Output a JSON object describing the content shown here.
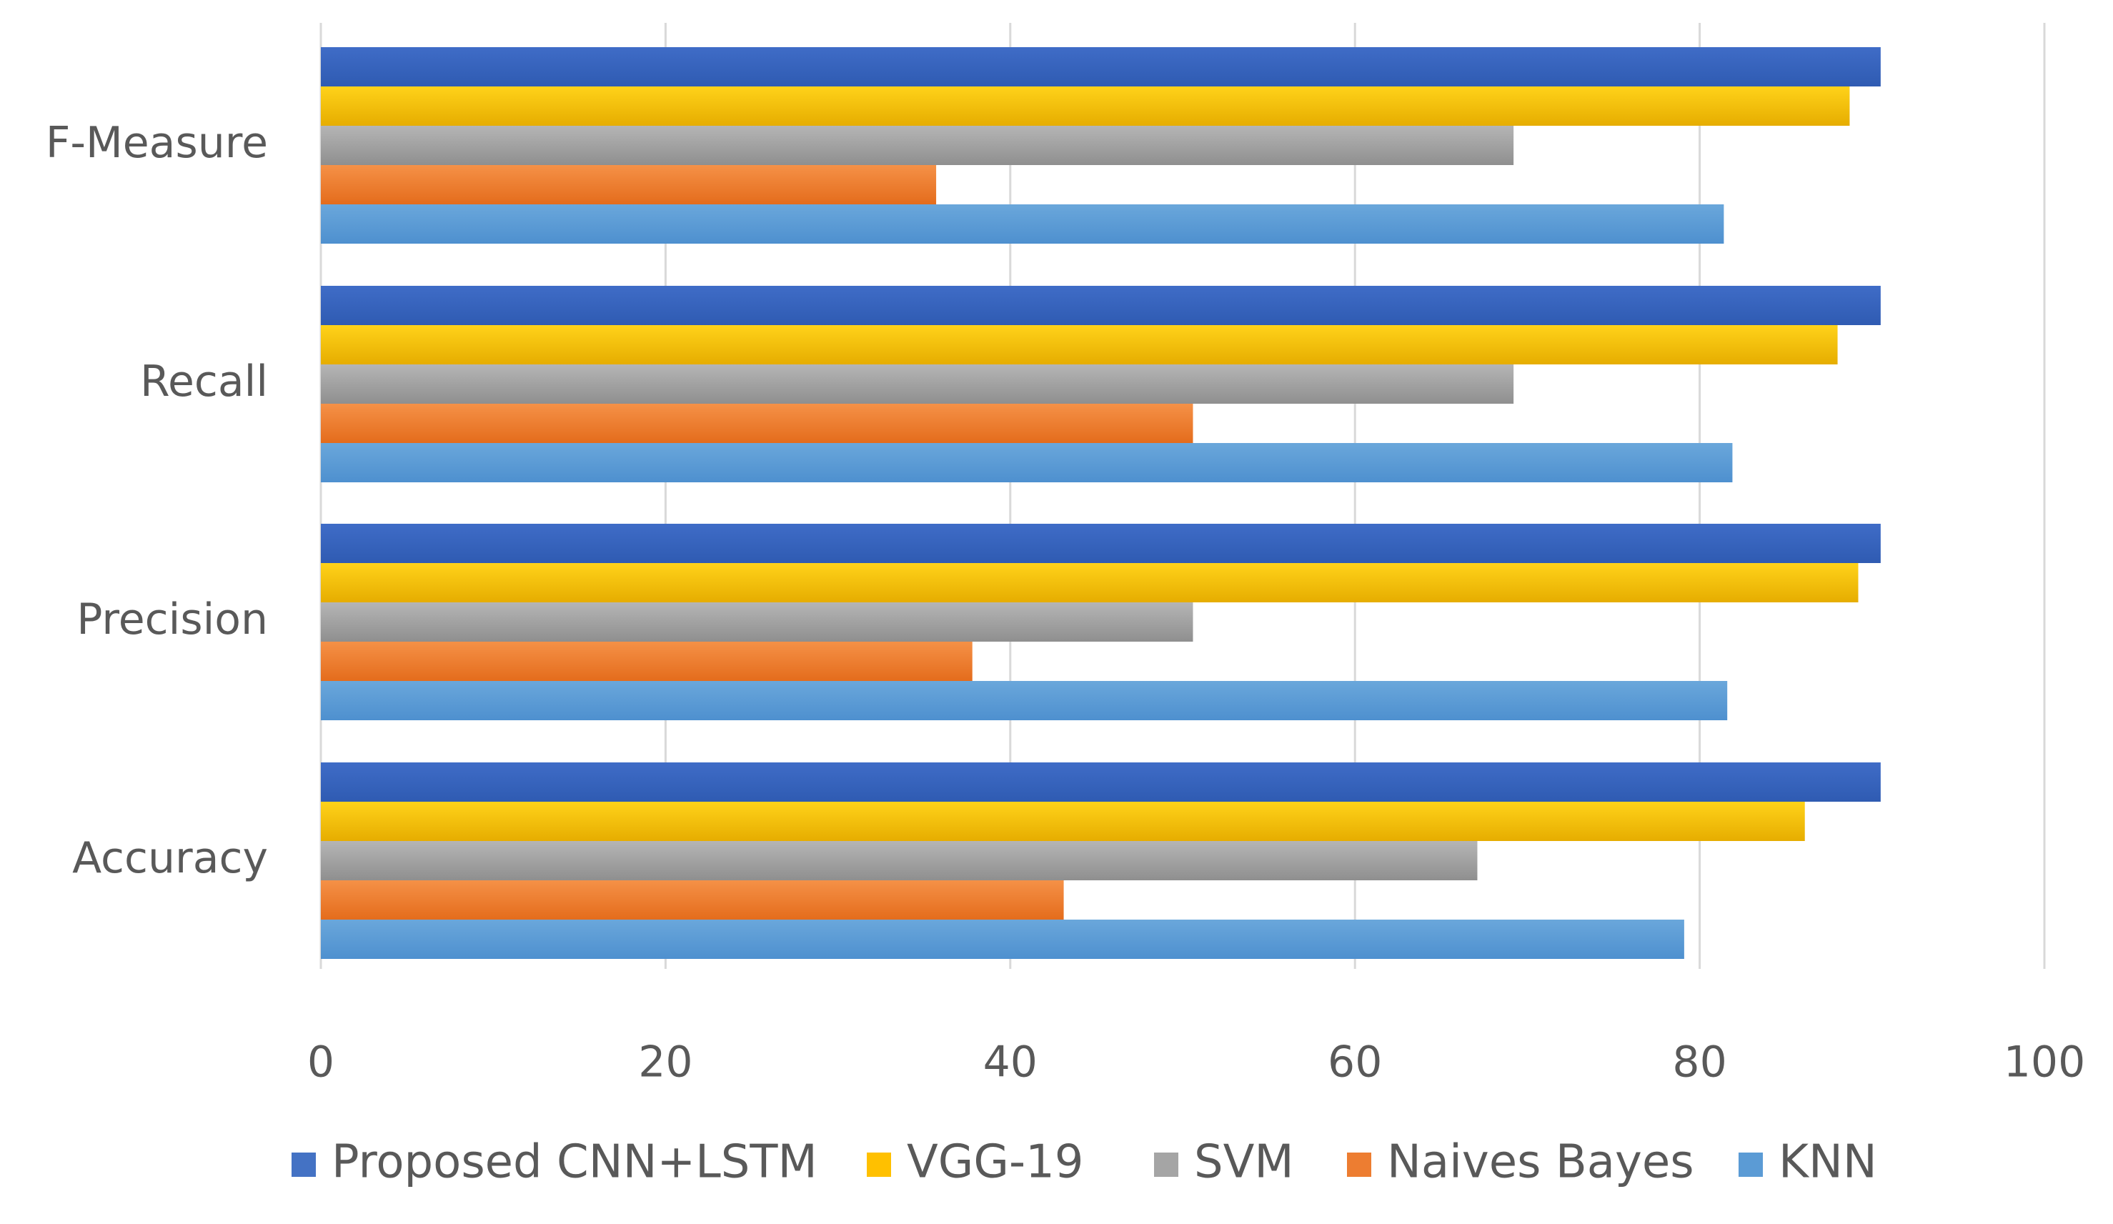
{
  "chart_data": {
    "type": "bar",
    "orientation": "horizontal",
    "title": "",
    "xlabel": "",
    "ylabel": "",
    "categories": [
      "F-Measure",
      "Recall",
      "Precision",
      "Accuracy"
    ],
    "xlim": [
      0,
      100
    ],
    "x_ticks": [
      "0",
      "20",
      "40",
      "60",
      "80",
      "100"
    ],
    "grid": true,
    "legend_position": "bottom",
    "series": [
      {
        "name": "Proposed CNN+LSTM",
        "color": "#4472C4",
        "values": [
          90.5,
          90.5,
          90.5,
          90.5
        ]
      },
      {
        "name": "VGG-19",
        "color": "#FFC000",
        "values": [
          88.7,
          88.0,
          89.2,
          86.1
        ]
      },
      {
        "name": "SVM",
        "color": "#A5A5A5",
        "values": [
          69.2,
          69.2,
          50.6,
          67.1
        ]
      },
      {
        "name": "Naives Bayes",
        "color": "#ED7D31",
        "values": [
          35.7,
          50.6,
          37.8,
          43.1
        ]
      },
      {
        "name": "KNN",
        "color": "#5B9BD5",
        "values": [
          81.4,
          81.9,
          81.6,
          79.1
        ]
      }
    ]
  }
}
